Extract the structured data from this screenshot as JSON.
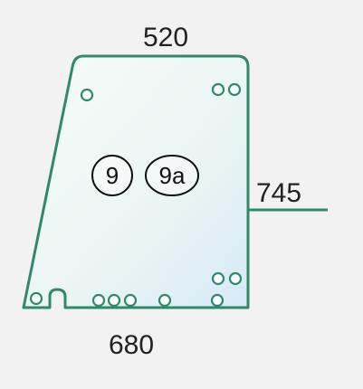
{
  "diagram": {
    "dimensions": {
      "top": "520",
      "right": "745",
      "bottom": "680"
    },
    "part_refs": [
      "9",
      "9a"
    ],
    "colors": {
      "outline": "#2e8a6a",
      "hole_stroke": "#2e8a6a",
      "glass_fill_top": "#f3fbf7",
      "glass_fill_bottom": "#dcecf6",
      "text": "#222222",
      "background": "#f2f2f2"
    }
  }
}
